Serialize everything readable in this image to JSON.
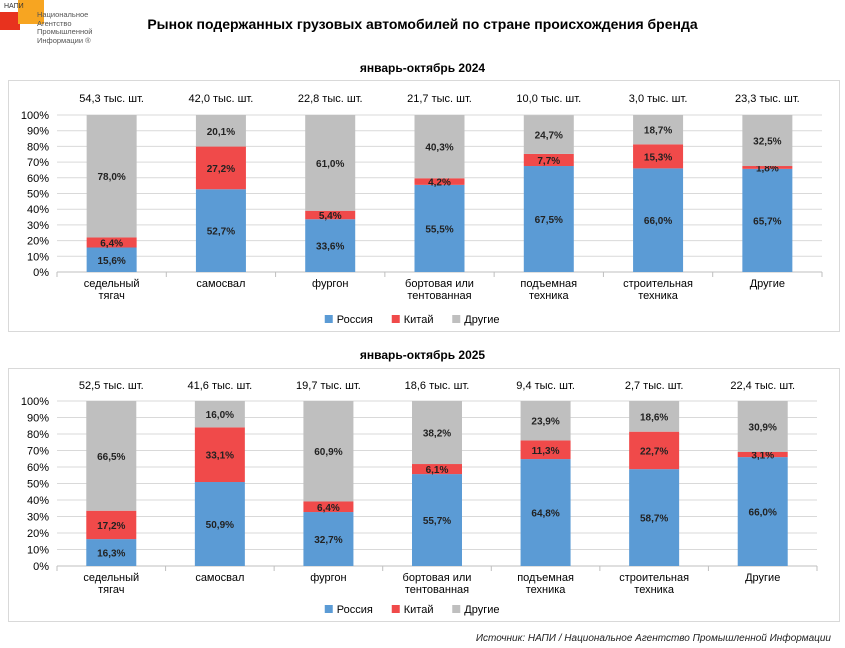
{
  "logo": {
    "abbr": "НАПИ",
    "lines": [
      "Национальное",
      "Агентство",
      "Промышленной",
      "Информации ®"
    ]
  },
  "title": "Рынок подержанных грузовых автомобилей по стране происхождения бренда",
  "source_note": "Источник: НАПИ / Национальное Агентство Промышленной Информации",
  "colors": {
    "russia": "#5b9bd5",
    "china": "#f04a4a",
    "other": "#bfbfbf"
  },
  "chart_data": [
    {
      "type": "bar",
      "stacked": "percent",
      "title": "январь-октябрь 2024",
      "categories": [
        [
          "седельный",
          "тягач"
        ],
        [
          "самосвал"
        ],
        [
          "фургон"
        ],
        [
          "бортовая или",
          "тентованная"
        ],
        [
          "подъемная",
          "техника"
        ],
        [
          "строительная",
          "техника"
        ],
        [
          "Другие"
        ]
      ],
      "totals": [
        "54,3 тыс. шт.",
        "42,0 тыс. шт.",
        "22,8 тыс. шт.",
        "21,7 тыс. шт.",
        "10,0 тыс. шт.",
        "3,0 тыс. шт.",
        "23,3 тыс. шт."
      ],
      "ylim": [
        0,
        100
      ],
      "yticks": [
        "0%",
        "10%",
        "20%",
        "30%",
        "40%",
        "50%",
        "60%",
        "70%",
        "80%",
        "90%",
        "100%"
      ],
      "legend_position": "bottom",
      "series": [
        {
          "name": "Россия",
          "color": "#5b9bd5",
          "values": [
            15.6,
            52.7,
            33.6,
            55.5,
            67.5,
            66.0,
            65.7
          ],
          "labels": [
            "15,6%",
            "52,7%",
            "33,6%",
            "55,5%",
            "67,5%",
            "66,0%",
            "65,7%"
          ]
        },
        {
          "name": "Китай",
          "color": "#f04a4a",
          "values": [
            6.4,
            27.2,
            5.4,
            4.2,
            7.7,
            15.3,
            1.8
          ],
          "labels": [
            "6,4%",
            "27,2%",
            "5,4%",
            "4,2%",
            "7,7%",
            "15,3%",
            "1,8%"
          ]
        },
        {
          "name": "Другие",
          "color": "#bfbfbf",
          "values": [
            78.0,
            20.1,
            61.0,
            40.3,
            24.7,
            18.7,
            32.5
          ],
          "labels": [
            "78,0%",
            "20,1%",
            "61,0%",
            "40,3%",
            "24,7%",
            "18,7%",
            "32,5%"
          ]
        }
      ]
    },
    {
      "type": "bar",
      "stacked": "percent",
      "title": "январь-октябрь 2025",
      "categories": [
        [
          "седельный",
          "тягач"
        ],
        [
          "самосвал"
        ],
        [
          "фургон"
        ],
        [
          "бортовая или",
          "тентованная"
        ],
        [
          "подъемная",
          "техника"
        ],
        [
          "строительная",
          "техника"
        ],
        [
          "Другие"
        ]
      ],
      "totals": [
        "52,5 тыс. шт.",
        "41,6 тыс. шт.",
        "19,7 тыс. шт.",
        "18,6 тыс. шт.",
        "9,4 тыс. шт.",
        "2,7 тыс. шт.",
        "22,4 тыс. шт."
      ],
      "ylim": [
        0,
        100
      ],
      "yticks": [
        "0%",
        "10%",
        "20%",
        "30%",
        "40%",
        "50%",
        "60%",
        "70%",
        "80%",
        "90%",
        "100%"
      ],
      "legend_position": "bottom",
      "series": [
        {
          "name": "Россия",
          "color": "#5b9bd5",
          "values": [
            16.3,
            50.9,
            32.7,
            55.7,
            64.8,
            58.7,
            66.0
          ],
          "labels": [
            "16,3%",
            "50,9%",
            "32,7%",
            "55,7%",
            "64,8%",
            "58,7%",
            "66,0%"
          ]
        },
        {
          "name": "Китай",
          "color": "#f04a4a",
          "values": [
            17.2,
            33.1,
            6.4,
            6.1,
            11.3,
            22.7,
            3.1
          ],
          "labels": [
            "17,2%",
            "33,1%",
            "6,4%",
            "6,1%",
            "11,3%",
            "22,7%",
            "3,1%"
          ]
        },
        {
          "name": "Другие",
          "color": "#bfbfbf",
          "values": [
            66.5,
            16.0,
            60.9,
            38.2,
            23.9,
            18.6,
            30.9
          ],
          "labels": [
            "66,5%",
            "16,0%",
            "60,9%",
            "38,2%",
            "23,9%",
            "18,6%",
            "30,9%"
          ]
        }
      ]
    }
  ]
}
